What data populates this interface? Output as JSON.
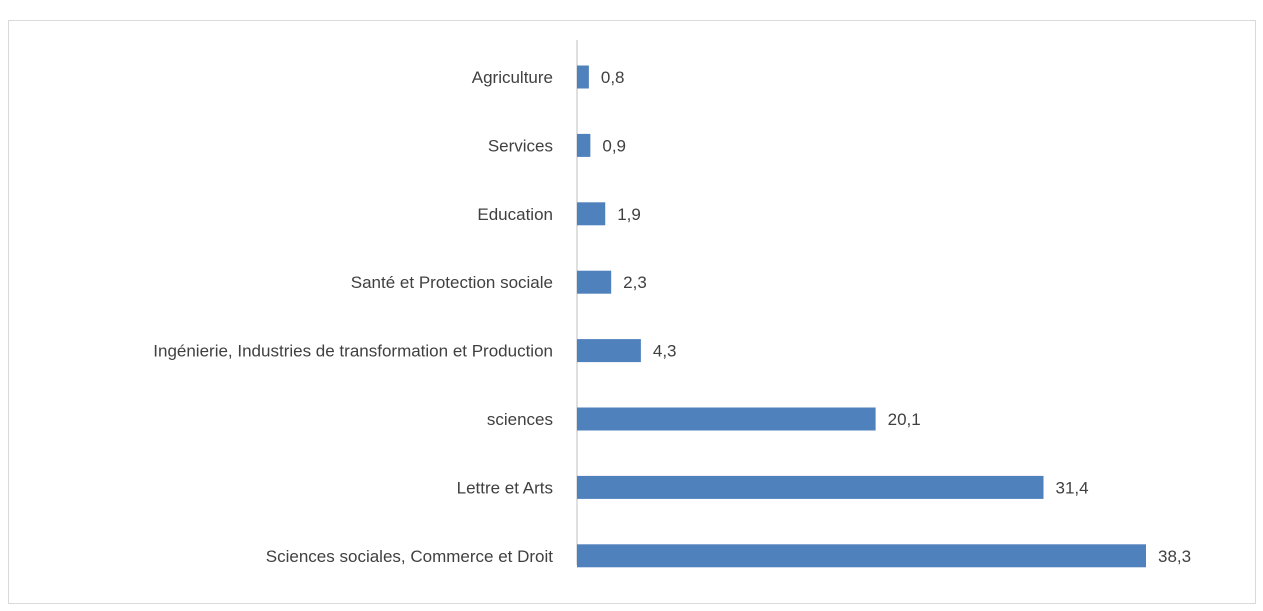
{
  "chart_data": {
    "type": "bar",
    "orientation": "horizontal",
    "categories": [
      "Agriculture",
      "Services",
      "Education",
      "Santé et Protection sociale",
      "Ingénierie, Industries de transformation et Production",
      "sciences",
      "Lettre et Arts",
      "Sciences sociales, Commerce et Droit"
    ],
    "values": [
      0.8,
      0.9,
      1.9,
      2.3,
      4.3,
      20.1,
      31.4,
      38.3
    ],
    "value_labels": [
      "0,8",
      "0,9",
      "1,9",
      "2,3",
      "4,3",
      "20,1",
      "31,4",
      "38,3"
    ],
    "xlim": [
      0,
      40
    ],
    "grid": false,
    "bar_color": "#4f81bd"
  }
}
